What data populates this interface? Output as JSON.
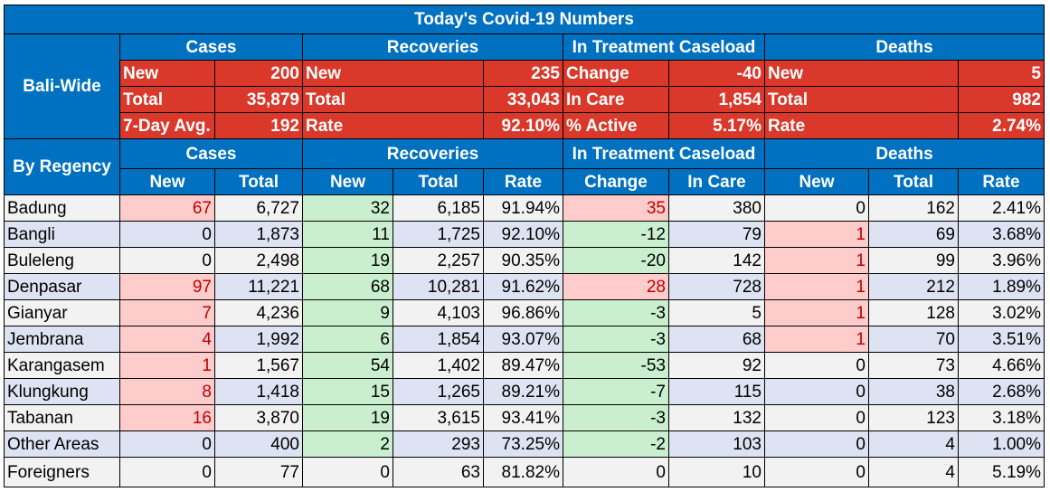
{
  "title": "Today's Covid-19 Numbers",
  "colors": {
    "header_blue": "#0070c0",
    "summary_red": "#d9382a",
    "row_light": "#f2f2f2",
    "row_blue": "#dde3f2",
    "highlight_pink": "#ffcccc",
    "highlight_green": "#c9efcf",
    "pink_text": "#c00000"
  },
  "bali_wide": {
    "label": "Bali-Wide",
    "groups": [
      "Cases",
      "Recoveries",
      "In Treatment Caseload",
      "Deaths"
    ],
    "rows": [
      [
        [
          "New",
          "200"
        ],
        [
          "New",
          "235"
        ],
        [
          "Change",
          "-40"
        ],
        [
          "New",
          "5"
        ]
      ],
      [
        [
          "Total",
          "35,879"
        ],
        [
          "Total",
          "33,043"
        ],
        [
          "In Care",
          "1,854"
        ],
        [
          "Total",
          "982"
        ]
      ],
      [
        [
          "7-Day Avg.",
          "192"
        ],
        [
          "Rate",
          "92.10%"
        ],
        [
          "% Active",
          "5.17%"
        ],
        [
          "Rate",
          "2.74%"
        ]
      ]
    ]
  },
  "by_regency": {
    "label": "By Regency",
    "groups": [
      "Cases",
      "Recoveries",
      "In Treatment Caseload",
      "Deaths"
    ],
    "subheaders": [
      "New",
      "Total",
      "New",
      "Total",
      "Rate",
      "Change",
      "In Care",
      "New",
      "Total",
      "Rate"
    ],
    "rows": [
      {
        "name": "Badung",
        "values": [
          "67",
          "6,727",
          "32",
          "6,185",
          "91.94%",
          "35",
          "380",
          "0",
          "162",
          "2.41%"
        ],
        "hl": {
          "cases_new": "pink",
          "rec_new": "green",
          "change": "pink",
          "death_new": ""
        }
      },
      {
        "name": "Bangli",
        "values": [
          "0",
          "1,873",
          "11",
          "1,725",
          "92.10%",
          "-12",
          "79",
          "1",
          "69",
          "3.68%"
        ],
        "hl": {
          "cases_new": "",
          "rec_new": "green",
          "change": "green",
          "death_new": "pink"
        }
      },
      {
        "name": "Buleleng",
        "values": [
          "0",
          "2,498",
          "19",
          "2,257",
          "90.35%",
          "-20",
          "142",
          "1",
          "99",
          "3.96%"
        ],
        "hl": {
          "cases_new": "",
          "rec_new": "green",
          "change": "green",
          "death_new": "pink"
        }
      },
      {
        "name": "Denpasar",
        "values": [
          "97",
          "11,221",
          "68",
          "10,281",
          "91.62%",
          "28",
          "728",
          "1",
          "212",
          "1.89%"
        ],
        "hl": {
          "cases_new": "pink",
          "rec_new": "green",
          "change": "pink",
          "death_new": "pink"
        }
      },
      {
        "name": "Gianyar",
        "values": [
          "7",
          "4,236",
          "9",
          "4,103",
          "96.86%",
          "-3",
          "5",
          "1",
          "128",
          "3.02%"
        ],
        "hl": {
          "cases_new": "pink",
          "rec_new": "green",
          "change": "green",
          "death_new": "pink"
        }
      },
      {
        "name": "Jembrana",
        "values": [
          "4",
          "1,992",
          "6",
          "1,854",
          "93.07%",
          "-3",
          "68",
          "1",
          "70",
          "3.51%"
        ],
        "hl": {
          "cases_new": "pink",
          "rec_new": "green",
          "change": "green",
          "death_new": "pink"
        }
      },
      {
        "name": "Karangasem",
        "values": [
          "1",
          "1,567",
          "54",
          "1,402",
          "89.47%",
          "-53",
          "92",
          "0",
          "73",
          "4.66%"
        ],
        "hl": {
          "cases_new": "pink",
          "rec_new": "green",
          "change": "green",
          "death_new": ""
        }
      },
      {
        "name": "Klungkung",
        "values": [
          "8",
          "1,418",
          "15",
          "1,265",
          "89.21%",
          "-7",
          "115",
          "0",
          "38",
          "2.68%"
        ],
        "hl": {
          "cases_new": "pink",
          "rec_new": "green",
          "change": "green",
          "death_new": ""
        }
      },
      {
        "name": "Tabanan",
        "values": [
          "16",
          "3,870",
          "19",
          "3,615",
          "93.41%",
          "-3",
          "132",
          "0",
          "123",
          "3.18%"
        ],
        "hl": {
          "cases_new": "pink",
          "rec_new": "green",
          "change": "green",
          "death_new": ""
        }
      },
      {
        "name": "Other Areas",
        "values": [
          "0",
          "400",
          "2",
          "293",
          "73.25%",
          "-2",
          "103",
          "0",
          "4",
          "1.00%"
        ],
        "hl": {
          "cases_new": "",
          "rec_new": "green",
          "change": "green",
          "death_new": ""
        }
      },
      {
        "name": "Foreigners",
        "values": [
          "0",
          "77",
          "0",
          "63",
          "81.82%",
          "0",
          "10",
          "0",
          "4",
          "5.19%"
        ],
        "hl": {
          "cases_new": "",
          "rec_new": "",
          "change": "",
          "death_new": ""
        }
      }
    ]
  }
}
